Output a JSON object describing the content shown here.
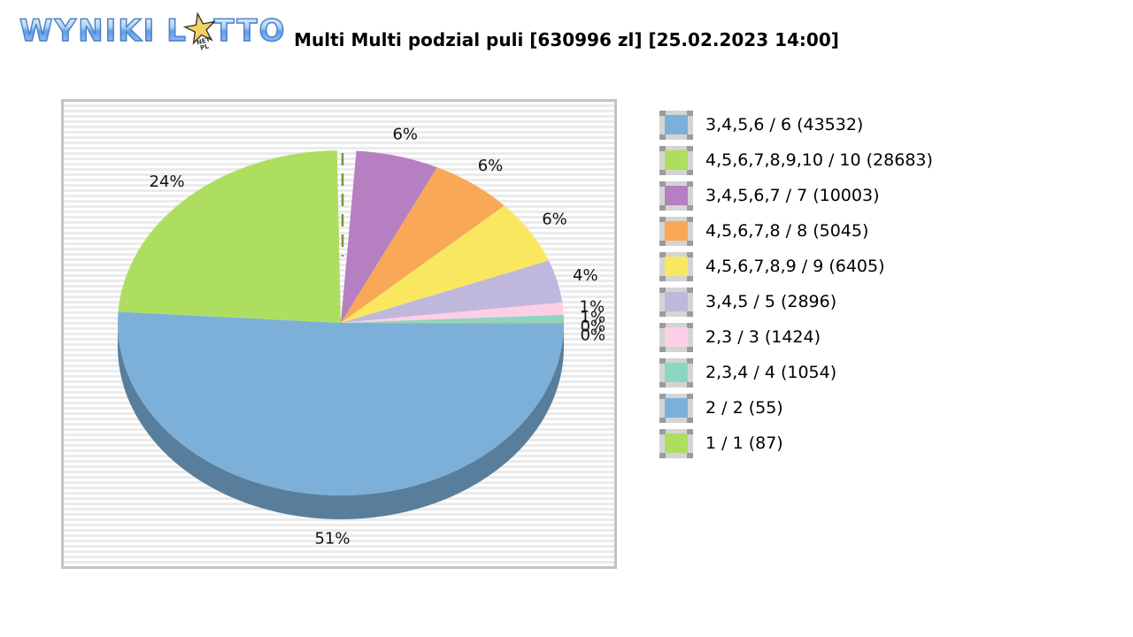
{
  "logo": {
    "word1": "WYNIKI",
    "word2_before_star": "L",
    "word2_after_star": "TTO",
    "star_icon_char": "★",
    "star_text_line1": "NET",
    "star_text_line2": "PL"
  },
  "title": "Multi Multi podzial puli [630996 zl] [25.02.2023 14:00]",
  "chart_data": {
    "type": "pie",
    "style": "3d",
    "title": "Multi Multi podzial puli [630996 zl] [25.02.2023 14:00]",
    "pool_total_label": "630996 zl",
    "draw_datetime_label": "25.02.2023 14:00",
    "legend_position": "right",
    "start_angle_deg": 4,
    "rim_color": "#587e9b",
    "divider_color": "#77923d",
    "slices": [
      {
        "legend_label": "3,4,5,6 / 6 (43532)",
        "category": "3,4,5,6 / 6",
        "winners": 43532,
        "pct_label": "51%",
        "pct": 51,
        "geo_pct": 51.0,
        "color": "#7db0d8",
        "pie_order": 8
      },
      {
        "legend_label": "4,5,6,7,8,9,10 / 10 (28683)",
        "category": "4,5,6,7,8,9,10 / 10",
        "winners": 28683,
        "pct_label": "24%",
        "pct": 24,
        "geo_pct": 23.7,
        "color": "#aede60",
        "pie_order": 9
      },
      {
        "legend_label": "3,4,5,6,7 / 7 (10003)",
        "category": "3,4,5,6,7 / 7",
        "winners": 10003,
        "pct_label": "6%",
        "pct": 6,
        "geo_pct": 6.0,
        "color": "#b57fc2",
        "pie_order": 0
      },
      {
        "legend_label": "4,5,6,7,8 / 8 (5045)",
        "category": "4,5,6,7,8 / 8",
        "winners": 5045,
        "pct_label": "6%",
        "pct": 6,
        "geo_pct": 6.0,
        "color": "#f9a858",
        "pie_order": 1
      },
      {
        "legend_label": "4,5,6,7,8,9 / 9 (6405)",
        "category": "4,5,6,7,8,9 / 9",
        "winners": 6405,
        "pct_label": "6%",
        "pct": 6,
        "geo_pct": 6.0,
        "color": "#f9e75f",
        "pie_order": 2
      },
      {
        "legend_label": "3,4,5 / 5 (2896)",
        "category": "3,4,5 / 5",
        "winners": 2896,
        "pct_label": "4%",
        "pct": 4,
        "geo_pct": 4.0,
        "color": "#bfb8dc",
        "pie_order": 3
      },
      {
        "legend_label": "2,3 / 3 (1424)",
        "category": "2,3 / 3",
        "winners": 1424,
        "pct_label": "1%",
        "pct": 1,
        "geo_pct": 1.14,
        "color": "#fdcfe6",
        "pie_order": 4
      },
      {
        "legend_label": "2,3,4 / 4 (1054)",
        "category": "2,3,4 / 4",
        "winners": 1054,
        "pct_label": "1%",
        "pct": 1,
        "geo_pct": 0.64,
        "color": "#8bd6c2",
        "pie_order": 5
      },
      {
        "legend_label": "2 / 2 (55)",
        "category": "2 / 2",
        "winners": 55,
        "pct_label": "0%",
        "pct": 0,
        "geo_pct": 0.055,
        "color": "#7db0d8",
        "pie_order": 6
      },
      {
        "legend_label": "1 / 1 (87)",
        "category": "1 / 1",
        "winners": 87,
        "pct_label": "0%",
        "pct": 0,
        "geo_pct": 0.088,
        "color": "#aede60",
        "pie_order": 7
      }
    ]
  }
}
